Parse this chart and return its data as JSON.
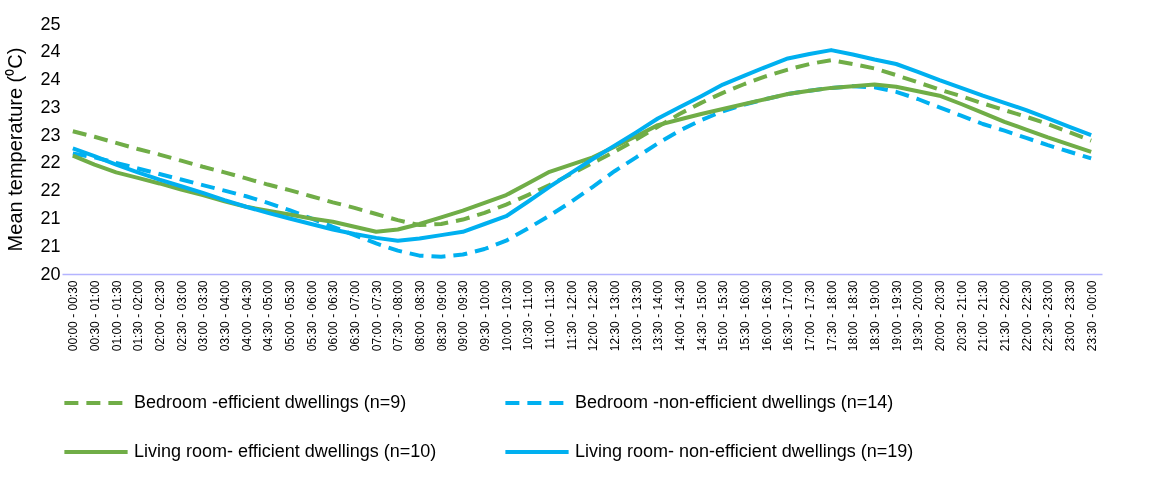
{
  "chart_data": {
    "type": "line",
    "ylabel": "Mean temperature (⁰C)",
    "categories": [
      "00:00 - 00:30",
      "00:30 - 01:00",
      "01:00 - 01:30",
      "01:30 - 02:00",
      "02:00 - 02:30",
      "02:30 - 03:00",
      "03:00 - 03:30",
      "03:30 - 04:00",
      "04:00 - 04:30",
      "04:30 - 05:00",
      "05:00 - 05:30",
      "05:30 - 06:00",
      "06:00 - 06:30",
      "06:30 - 07:00",
      "07:00 - 07:30",
      "07:30 - 08:00",
      "08:00 - 08:30",
      "08:30 - 09:00",
      "09:00 - 09:30",
      "09:30 - 10:00",
      "10:00 - 10:30",
      "10:30 - 11:00",
      "11:00 - 11:30",
      "11:30 - 12:00",
      "12:00 - 12:30",
      "12:30 - 13:00",
      "13:00 - 13:30",
      "13:30 - 14:00",
      "14:00 - 14:30",
      "14:30 - 15:00",
      "15:00 - 15:30",
      "15:30 - 16:00",
      "16:00 - 16:30",
      "16:30 - 17:00",
      "17:00 - 17:30",
      "17:30 - 18:00",
      "18:00 - 18:30",
      "18:30 - 19:00",
      "19:00 - 19:30",
      "19:30 - 20:00",
      "20:00 - 20:30",
      "20:30 - 21:00",
      "21:00 - 21:30",
      "21:30 - 22:00",
      "22:00 - 22:30",
      "22:30 - 23:00",
      "23:00 - 23:30",
      "23:30 - 00:00"
    ],
    "series": [
      {
        "name": "Bedroom -efficient dwellings (n=9)",
        "color": "#70ad47",
        "line_style": "dashed",
        "values": [
          22.57,
          22.47,
          22.36,
          22.25,
          22.15,
          22.04,
          21.93,
          21.83,
          21.72,
          21.61,
          21.51,
          21.4,
          21.29,
          21.19,
          21.08,
          20.97,
          20.88,
          20.9,
          20.98,
          21.1,
          21.25,
          21.42,
          21.6,
          21.8,
          22.0,
          22.2,
          22.42,
          22.65,
          22.88,
          23.08,
          23.26,
          23.42,
          23.56,
          23.68,
          23.78,
          23.85,
          23.78,
          23.7,
          23.58,
          23.45,
          23.32,
          23.2,
          23.07,
          22.95,
          22.83,
          22.7,
          22.55,
          22.4
        ]
      },
      {
        "name": "Bedroom -non-efficient dwellings (n=14)",
        "color": "#00b0f0",
        "line_style": "dashed",
        "values": [
          22.17,
          22.1,
          22.0,
          21.9,
          21.8,
          21.7,
          21.6,
          21.5,
          21.4,
          21.28,
          21.15,
          21.0,
          20.85,
          20.7,
          20.55,
          20.42,
          20.33,
          20.31,
          20.35,
          20.45,
          20.6,
          20.82,
          21.05,
          21.3,
          21.57,
          21.85,
          22.1,
          22.35,
          22.58,
          22.77,
          22.93,
          23.05,
          23.15,
          23.24,
          23.3,
          23.35,
          23.38,
          23.36,
          23.28,
          23.15,
          23.0,
          22.85,
          22.7,
          22.58,
          22.45,
          22.32,
          22.2,
          22.08
        ]
      },
      {
        "name": "Living room- efficient dwellings (n=10)",
        "color": "#70ad47",
        "line_style": "solid",
        "values": [
          22.13,
          21.97,
          21.83,
          21.73,
          21.63,
          21.52,
          21.42,
          21.31,
          21.21,
          21.14,
          21.07,
          21.0,
          20.94,
          20.85,
          20.76,
          20.8,
          20.9,
          21.02,
          21.14,
          21.28,
          21.42,
          21.63,
          21.84,
          21.97,
          22.1,
          22.29,
          22.48,
          22.68,
          22.78,
          22.88,
          22.97,
          23.06,
          23.15,
          23.24,
          23.3,
          23.35,
          23.38,
          23.41,
          23.37,
          23.29,
          23.21,
          23.06,
          22.9,
          22.74,
          22.6,
          22.46,
          22.33,
          22.2
        ]
      },
      {
        "name": "Living room- non-efficient dwellings (n=19)",
        "color": "#00b0f0",
        "line_style": "solid",
        "values": [
          22.26,
          22.12,
          21.97,
          21.83,
          21.7,
          21.58,
          21.46,
          21.33,
          21.21,
          21.1,
          21.0,
          20.9,
          20.8,
          20.72,
          20.65,
          20.6,
          20.64,
          20.7,
          20.76,
          20.9,
          21.04,
          21.3,
          21.57,
          21.82,
          22.07,
          22.31,
          22.55,
          22.8,
          23.0,
          23.2,
          23.41,
          23.57,
          23.73,
          23.88,
          23.96,
          24.03,
          23.95,
          23.86,
          23.78,
          23.64,
          23.49,
          23.35,
          23.21,
          23.08,
          22.95,
          22.8,
          22.65,
          22.5
        ]
      }
    ],
    "ylim": [
      20,
      24.5
    ],
    "yticks": [
      20,
      {
        "value": 20.5,
        "label": "21"
      },
      21,
      {
        "value": 21.5,
        "label": "22"
      },
      22,
      {
        "value": 22.5,
        "label": "23"
      },
      23,
      {
        "value": 23.5,
        "label": "24"
      },
      24,
      {
        "value": 24.5,
        "label": "25"
      }
    ],
    "grid": false,
    "legend": "bottom"
  }
}
